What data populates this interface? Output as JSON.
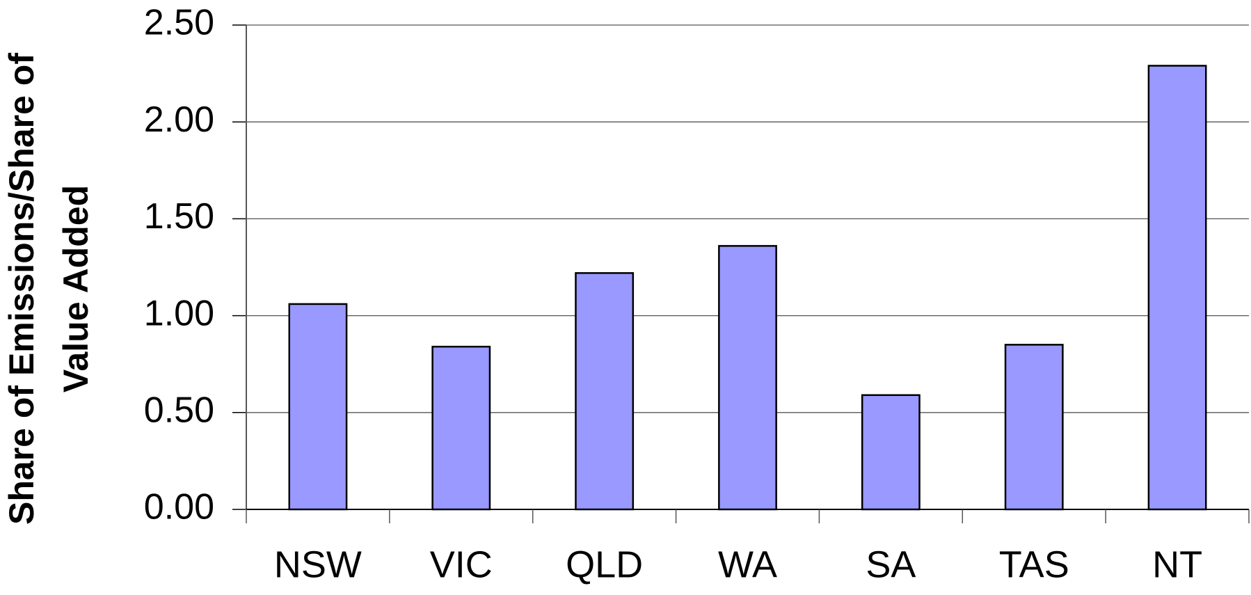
{
  "chart_data": {
    "type": "bar",
    "y_label": [
      "Share of Emissions/Share of",
      "Value Added"
    ],
    "categories": [
      "NSW",
      "VIC",
      "QLD",
      "WA",
      "SA",
      "TAS",
      "NT"
    ],
    "values": [
      1.06,
      0.84,
      1.22,
      1.36,
      0.59,
      0.85,
      2.29
    ],
    "color": "#9999ff",
    "ylim": [
      0,
      2.5
    ],
    "yticks": [
      {
        "value": 0,
        "label": "0.00"
      },
      {
        "value": 0.5,
        "label": "0.50"
      },
      {
        "value": 1,
        "label": "1.00"
      },
      {
        "value": 1.5,
        "label": "1.50"
      },
      {
        "value": 2,
        "label": "2.00"
      },
      {
        "value": 2.5,
        "label": "2.50"
      }
    ],
    "grid": true
  }
}
